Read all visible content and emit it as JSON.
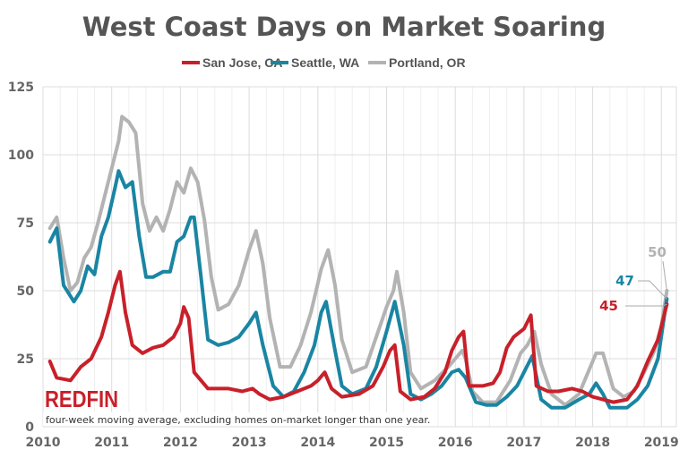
{
  "chart_data": {
    "type": "line",
    "title": "West Coast Days on Market Soaring",
    "xlabel": "",
    "ylabel": "",
    "xlim": [
      2010,
      2019.2
    ],
    "ylim": [
      0,
      125
    ],
    "x_ticks": [
      "2010",
      "2011",
      "2012",
      "2013",
      "2014",
      "2015",
      "2016",
      "2017",
      "2018",
      "2019"
    ],
    "y_ticks": [
      "0",
      "25",
      "50",
      "75",
      "100",
      "125"
    ],
    "grid": true,
    "legend_placement": "top-center",
    "note": "four-week moving average, excluding homes on-market longer than one year.",
    "logo": "REDFIN",
    "series": [
      {
        "name": "San Jose, CA",
        "color": "#c8202a",
        "end_label": "45",
        "x": [
          2010.1,
          2010.2,
          2010.4,
          2010.55,
          2010.7,
          2010.85,
          2010.95,
          2011.05,
          2011.12,
          2011.2,
          2011.3,
          2011.45,
          2011.6,
          2011.75,
          2011.9,
          2012.0,
          2012.05,
          2012.12,
          2012.2,
          2012.4,
          2012.7,
          2012.9,
          2013.05,
          2013.15,
          2013.3,
          2013.5,
          2013.7,
          2013.9,
          2014.0,
          2014.1,
          2014.2,
          2014.35,
          2014.6,
          2014.8,
          2014.95,
          2015.05,
          2015.12,
          2015.2,
          2015.35,
          2015.55,
          2015.7,
          2015.85,
          2015.95,
          2016.05,
          2016.12,
          2016.2,
          2016.4,
          2016.55,
          2016.65,
          2016.75,
          2016.85,
          2017.0,
          2017.1,
          2017.18,
          2017.35,
          2017.5,
          2017.7,
          2017.85,
          2018.0,
          2018.15,
          2018.3,
          2018.5,
          2018.65,
          2018.8,
          2018.95,
          2019.08
        ],
        "values": [
          24,
          18,
          17,
          22,
          25,
          33,
          42,
          52,
          57,
          42,
          30,
          27,
          29,
          30,
          33,
          38,
          44,
          40,
          20,
          14,
          14,
          13,
          14,
          12,
          10,
          11,
          13,
          15,
          17,
          20,
          14,
          11,
          12,
          15,
          22,
          28,
          30,
          13,
          10,
          11,
          14,
          20,
          28,
          33,
          35,
          15,
          15,
          16,
          20,
          29,
          33,
          36,
          41,
          15,
          13,
          13,
          14,
          13,
          11,
          10,
          9,
          10,
          15,
          24,
          32,
          45
        ]
      },
      {
        "name": "Seattle, WA",
        "color": "#1a85a3",
        "end_label": "47",
        "x": [
          2010.1,
          2010.2,
          2010.3,
          2010.45,
          2010.55,
          2010.65,
          2010.75,
          2010.85,
          2010.95,
          2011.05,
          2011.1,
          2011.2,
          2011.3,
          2011.4,
          2011.5,
          2011.6,
          2011.75,
          2011.85,
          2011.95,
          2012.05,
          2012.15,
          2012.2,
          2012.3,
          2012.4,
          2012.55,
          2012.7,
          2012.85,
          2013.0,
          2013.1,
          2013.2,
          2013.35,
          2013.5,
          2013.65,
          2013.8,
          2013.95,
          2014.05,
          2014.12,
          2014.25,
          2014.35,
          2014.5,
          2014.7,
          2014.85,
          2015.0,
          2015.12,
          2015.25,
          2015.35,
          2015.5,
          2015.65,
          2015.8,
          2015.95,
          2016.05,
          2016.15,
          2016.3,
          2016.45,
          2016.6,
          2016.75,
          2016.9,
          2017.0,
          2017.12,
          2017.25,
          2017.4,
          2017.6,
          2017.8,
          2017.95,
          2018.05,
          2018.15,
          2018.25,
          2018.5,
          2018.65,
          2018.8,
          2018.95,
          2019.08
        ],
        "values": [
          68,
          73,
          52,
          46,
          50,
          59,
          56,
          70,
          77,
          88,
          94,
          88,
          90,
          70,
          55,
          55,
          57,
          57,
          68,
          70,
          77,
          77,
          55,
          32,
          30,
          31,
          33,
          38,
          42,
          30,
          15,
          11,
          13,
          20,
          30,
          42,
          46,
          28,
          15,
          12,
          14,
          22,
          35,
          46,
          30,
          12,
          10,
          12,
          15,
          20,
          21,
          18,
          9,
          8,
          8,
          11,
          15,
          20,
          26,
          10,
          7,
          7,
          10,
          12,
          16,
          12,
          7,
          7,
          10,
          15,
          25,
          47
        ]
      },
      {
        "name": "Portland, OR",
        "color": "#b3b3b3",
        "end_label": "50",
        "x": [
          2010.1,
          2010.2,
          2010.3,
          2010.4,
          2010.5,
          2010.6,
          2010.7,
          2010.8,
          2010.9,
          2011.0,
          2011.1,
          2011.15,
          2011.25,
          2011.35,
          2011.45,
          2011.55,
          2011.65,
          2011.75,
          2011.85,
          2011.95,
          2012.05,
          2012.15,
          2012.25,
          2012.35,
          2012.45,
          2012.55,
          2012.7,
          2012.85,
          2013.0,
          2013.1,
          2013.2,
          2013.3,
          2013.45,
          2013.6,
          2013.75,
          2013.9,
          2014.05,
          2014.15,
          2014.25,
          2014.35,
          2014.5,
          2014.7,
          2014.85,
          2015.0,
          2015.1,
          2015.15,
          2015.25,
          2015.35,
          2015.5,
          2015.7,
          2015.9,
          2016.0,
          2016.1,
          2016.15,
          2016.25,
          2016.4,
          2016.6,
          2016.8,
          2016.95,
          2017.05,
          2017.15,
          2017.25,
          2017.4,
          2017.6,
          2017.8,
          2017.9,
          2018.05,
          2018.15,
          2018.3,
          2018.45,
          2018.6,
          2018.75,
          2018.9,
          2019.0,
          2019.08
        ],
        "values": [
          73,
          77,
          62,
          50,
          53,
          62,
          66,
          75,
          85,
          95,
          105,
          114,
          112,
          108,
          82,
          72,
          77,
          72,
          80,
          90,
          86,
          95,
          90,
          76,
          55,
          43,
          45,
          52,
          65,
          72,
          60,
          40,
          22,
          22,
          30,
          42,
          58,
          65,
          52,
          32,
          20,
          22,
          33,
          44,
          50,
          57,
          42,
          20,
          14,
          17,
          22,
          25,
          28,
          25,
          13,
          9,
          9,
          17,
          27,
          30,
          35,
          23,
          12,
          8,
          12,
          18,
          27,
          27,
          14,
          11,
          13,
          20,
          28,
          37,
          50
        ]
      }
    ]
  }
}
